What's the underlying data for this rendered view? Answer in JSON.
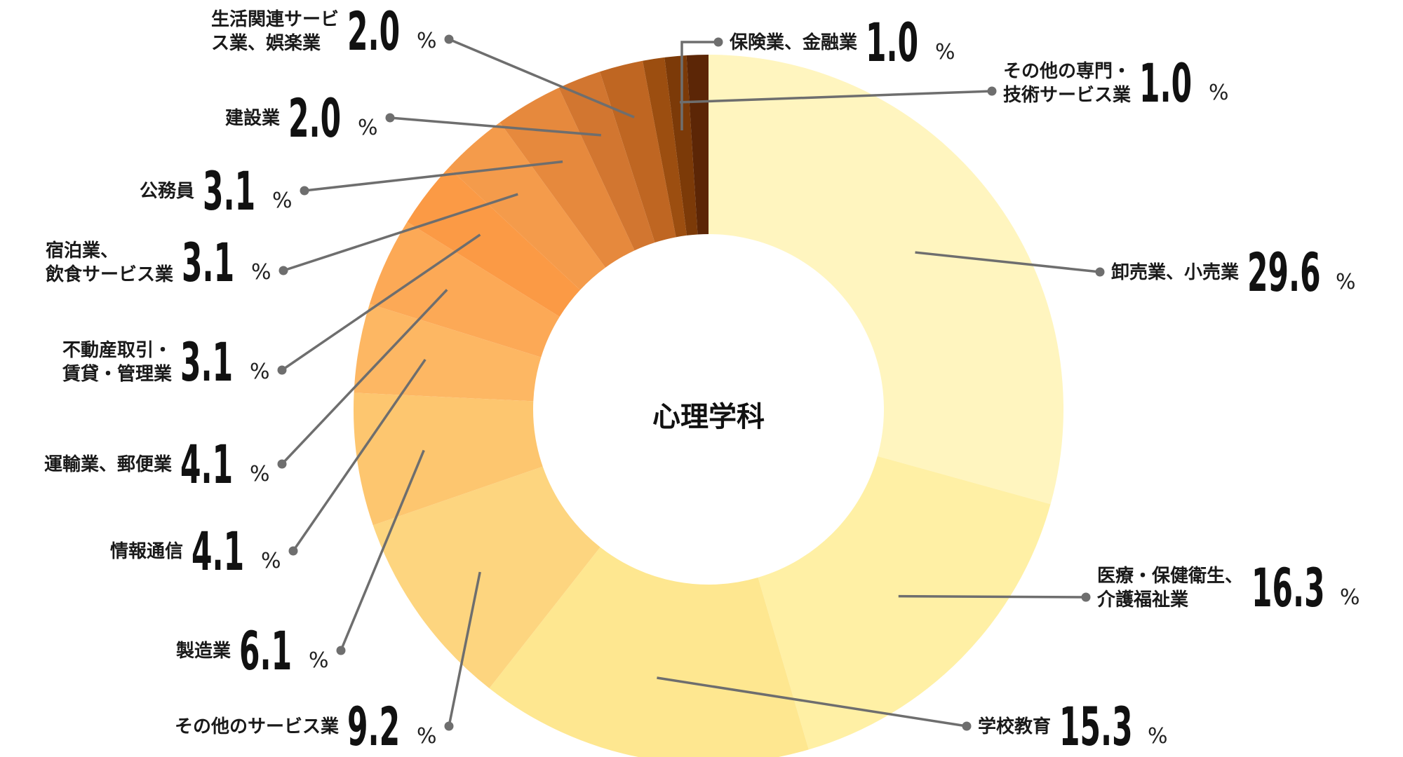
{
  "chart_data": {
    "type": "pie",
    "title": "心理学科",
    "unit": "%",
    "slices": [
      {
        "label": [
          "卸売業、小売業"
        ],
        "value": 29.6,
        "color": "#FFF5BF"
      },
      {
        "label": [
          "医療・保健衛生、",
          "介護福祉業"
        ],
        "value": 16.3,
        "color": "#FFF0A5"
      },
      {
        "label": [
          "学校教育"
        ],
        "value": 15.3,
        "color": "#FEE790"
      },
      {
        "label": [
          "その他のサービス業"
        ],
        "value": 9.2,
        "color": "#FDD57F"
      },
      {
        "label": [
          "製造業"
        ],
        "value": 6.1,
        "color": "#FDC66F"
      },
      {
        "label": [
          "情報通信"
        ],
        "value": 4.1,
        "color": "#FDB763"
      },
      {
        "label": [
          "運輸業、郵便業"
        ],
        "value": 4.1,
        "color": "#FCA956"
      },
      {
        "label": [
          "不動産取引・",
          "賃貸・管理業"
        ],
        "value": 3.1,
        "color": "#FB9A45"
      },
      {
        "label": [
          "宿泊業、",
          "飲食サービス業"
        ],
        "value": 3.1,
        "color": "#F49B4B"
      },
      {
        "label": [
          "公務員"
        ],
        "value": 3.1,
        "color": "#E6893D"
      },
      {
        "label": [
          "建設業"
        ],
        "value": 2.0,
        "color": "#D27630"
      },
      {
        "label": [
          "生活関連サービ",
          "ス業、娯楽業"
        ],
        "value": 2.0,
        "color": "#BF6622"
      },
      {
        "label": [
          "保険業、金融業"
        ],
        "value": 1.0,
        "color": "#9C4E10"
      },
      {
        "label": [
          "その他の専門・",
          "技術サービス業"
        ],
        "value": 1.0,
        "color": "#7C3A08"
      },
      {
        "label": [],
        "value": 1.0,
        "color": "#5C2606"
      }
    ]
  }
}
